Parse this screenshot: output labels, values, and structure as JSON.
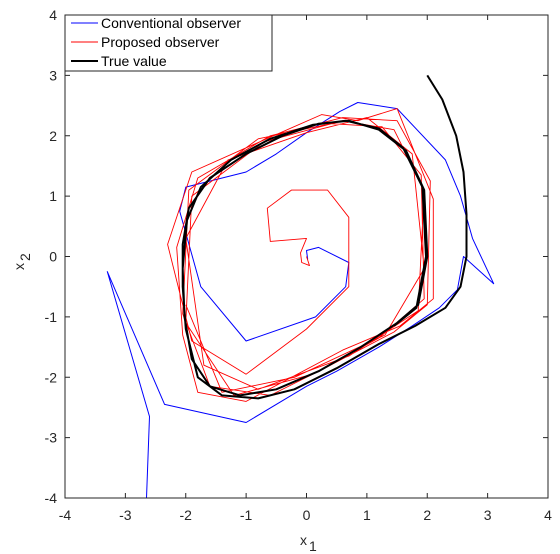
{
  "chart_data": {
    "type": "line",
    "title": "",
    "xlabel": {
      "base": "x",
      "sub": "1"
    },
    "ylabel": {
      "base": "x",
      "sub": "2"
    },
    "xlim": [
      -4,
      4
    ],
    "ylim": [
      -4,
      4
    ],
    "xticks": [
      "-4",
      "-3",
      "-2",
      "-1",
      "0",
      "1",
      "2",
      "3",
      "4"
    ],
    "yticks": [
      "-4",
      "-3",
      "-2",
      "-1",
      "0",
      "1",
      "2",
      "3",
      "4"
    ],
    "grid": false,
    "legend_position": "top-left",
    "series": [
      {
        "name": "Conventional observer",
        "color": "#0000ff",
        "points": [
          [
            -2.65,
            -4.0
          ],
          [
            -2.6,
            -2.65
          ],
          [
            -3.3,
            -0.25
          ],
          [
            -2.35,
            -2.45
          ],
          [
            -1.0,
            -2.75
          ],
          [
            0.0,
            -2.15
          ],
          [
            0.5,
            -1.9
          ],
          [
            1.2,
            -1.5
          ],
          [
            1.75,
            -1.15
          ],
          [
            2.2,
            -0.85
          ],
          [
            2.5,
            -0.55
          ],
          [
            2.6,
            0.0
          ],
          [
            3.1,
            -0.45
          ],
          [
            2.75,
            0.3
          ],
          [
            2.55,
            1.0
          ],
          [
            2.3,
            1.6
          ],
          [
            1.5,
            2.45
          ],
          [
            0.85,
            2.55
          ],
          [
            0.55,
            2.4
          ],
          [
            0.0,
            2.05
          ],
          [
            -0.5,
            1.7
          ],
          [
            -1.0,
            1.4
          ],
          [
            -2.0,
            1.15
          ],
          [
            -2.1,
            0.75
          ],
          [
            -1.75,
            -0.5
          ],
          [
            -1.0,
            -1.4
          ],
          [
            0.15,
            -1.0
          ],
          [
            0.65,
            -0.5
          ],
          [
            0.7,
            -0.1
          ],
          [
            0.2,
            0.15
          ],
          [
            0.0,
            0.1
          ],
          [
            0.02,
            -0.05
          ]
        ]
      },
      {
        "name": "Proposed observer",
        "color": "#ff0000",
        "points": [
          [
            0.0,
            0.0
          ],
          [
            0.05,
            -0.15
          ],
          [
            -0.08,
            -0.1
          ],
          [
            -0.1,
            0.06
          ],
          [
            0.0,
            0.3
          ],
          [
            -0.6,
            0.25
          ],
          [
            -0.65,
            0.8
          ],
          [
            -0.25,
            1.1
          ],
          [
            0.35,
            1.1
          ],
          [
            0.7,
            0.65
          ],
          [
            0.7,
            -0.5
          ],
          [
            0.0,
            -1.2
          ],
          [
            -1.0,
            -1.95
          ],
          [
            -1.9,
            -1.4
          ],
          [
            -2.3,
            0.2
          ],
          [
            -1.9,
            1.4
          ],
          [
            -1.0,
            1.8
          ],
          [
            0.25,
            2.35
          ],
          [
            0.85,
            2.25
          ],
          [
            1.5,
            2.45
          ],
          [
            2.1,
            0.95
          ],
          [
            2.1,
            -0.7
          ],
          [
            1.55,
            -1.15
          ],
          [
            0.6,
            -1.55
          ],
          [
            -1.0,
            -2.4
          ],
          [
            -1.8,
            -2.25
          ],
          [
            -2.05,
            -1.3
          ],
          [
            -2.15,
            0.15
          ],
          [
            -1.8,
            1.3
          ],
          [
            -0.6,
            2.0
          ],
          [
            0.6,
            2.3
          ],
          [
            1.5,
            2.25
          ],
          [
            2.05,
            1.25
          ],
          [
            2.0,
            -0.8
          ],
          [
            1.45,
            -1.25
          ],
          [
            0.3,
            -1.85
          ],
          [
            -0.6,
            -2.3
          ],
          [
            -1.6,
            -2.15
          ],
          [
            -2.05,
            -0.95
          ],
          [
            -1.95,
            1.1
          ],
          [
            -0.8,
            1.95
          ],
          [
            0.4,
            2.2
          ],
          [
            1.25,
            2.15
          ],
          [
            1.9,
            1.35
          ],
          [
            1.95,
            -0.7
          ],
          [
            1.2,
            -1.35
          ],
          [
            0.1,
            -1.95
          ],
          [
            -1.2,
            -2.3
          ],
          [
            -2.0,
            -1.1
          ],
          [
            -1.9,
            1.0
          ],
          [
            -0.7,
            1.9
          ],
          [
            0.6,
            2.25
          ],
          [
            1.45,
            2.1
          ],
          [
            1.95,
            1.1
          ],
          [
            1.85,
            -0.9
          ],
          [
            0.7,
            -1.65
          ],
          [
            -0.8,
            -2.2
          ],
          [
            -1.7,
            -1.8
          ],
          [
            -2.0,
            0.3
          ],
          [
            -1.3,
            1.6
          ],
          [
            0.0,
            2.05
          ],
          [
            1.0,
            2.3
          ],
          [
            1.75,
            1.7
          ],
          [
            1.95,
            -0.2
          ],
          [
            1.3,
            -1.3
          ],
          [
            -0.2,
            -2.0
          ],
          [
            -1.4,
            -2.25
          ],
          [
            -2.0,
            -0.8
          ]
        ]
      },
      {
        "name": "True value",
        "color": "#000000",
        "points": [
          [
            2.0,
            3.0
          ],
          [
            2.25,
            2.6
          ],
          [
            2.48,
            2.0
          ],
          [
            2.6,
            1.4
          ],
          [
            2.65,
            0.7
          ],
          [
            2.65,
            0.0
          ],
          [
            2.55,
            -0.5
          ],
          [
            2.3,
            -0.85
          ],
          [
            1.8,
            -1.15
          ],
          [
            1.2,
            -1.45
          ],
          [
            0.5,
            -1.85
          ],
          [
            -0.2,
            -2.2
          ],
          [
            -0.8,
            -2.35
          ],
          [
            -1.4,
            -2.3
          ],
          [
            -1.8,
            -2.0
          ],
          [
            -2.0,
            -1.2
          ],
          [
            -2.05,
            -0.5
          ],
          [
            -2.05,
            0.2
          ],
          [
            -1.95,
            0.8
          ],
          [
            -1.6,
            1.3
          ],
          [
            -1.0,
            1.7
          ],
          [
            -0.4,
            2.0
          ],
          [
            0.2,
            2.2
          ],
          [
            0.7,
            2.25
          ],
          [
            1.2,
            2.1
          ],
          [
            1.65,
            1.75
          ],
          [
            1.95,
            1.1
          ],
          [
            2.0,
            0.0
          ],
          [
            1.85,
            -0.8
          ],
          [
            1.5,
            -1.1
          ],
          [
            0.9,
            -1.5
          ],
          [
            0.2,
            -1.9
          ],
          [
            -0.5,
            -2.2
          ],
          [
            -1.1,
            -2.3
          ],
          [
            -1.6,
            -2.15
          ],
          [
            -1.9,
            -1.7
          ],
          [
            -2.02,
            -1.0
          ],
          [
            -2.05,
            -0.2
          ],
          [
            -1.98,
            0.6
          ],
          [
            -1.75,
            1.15
          ],
          [
            -1.25,
            1.6
          ],
          [
            -0.6,
            1.95
          ],
          [
            0.1,
            2.18
          ],
          [
            0.65,
            2.25
          ],
          [
            1.2,
            2.12
          ],
          [
            1.6,
            1.8
          ],
          [
            1.92,
            1.15
          ],
          [
            1.98,
            0.0
          ],
          [
            1.82,
            -0.85
          ],
          [
            1.45,
            -1.15
          ]
        ]
      }
    ]
  }
}
